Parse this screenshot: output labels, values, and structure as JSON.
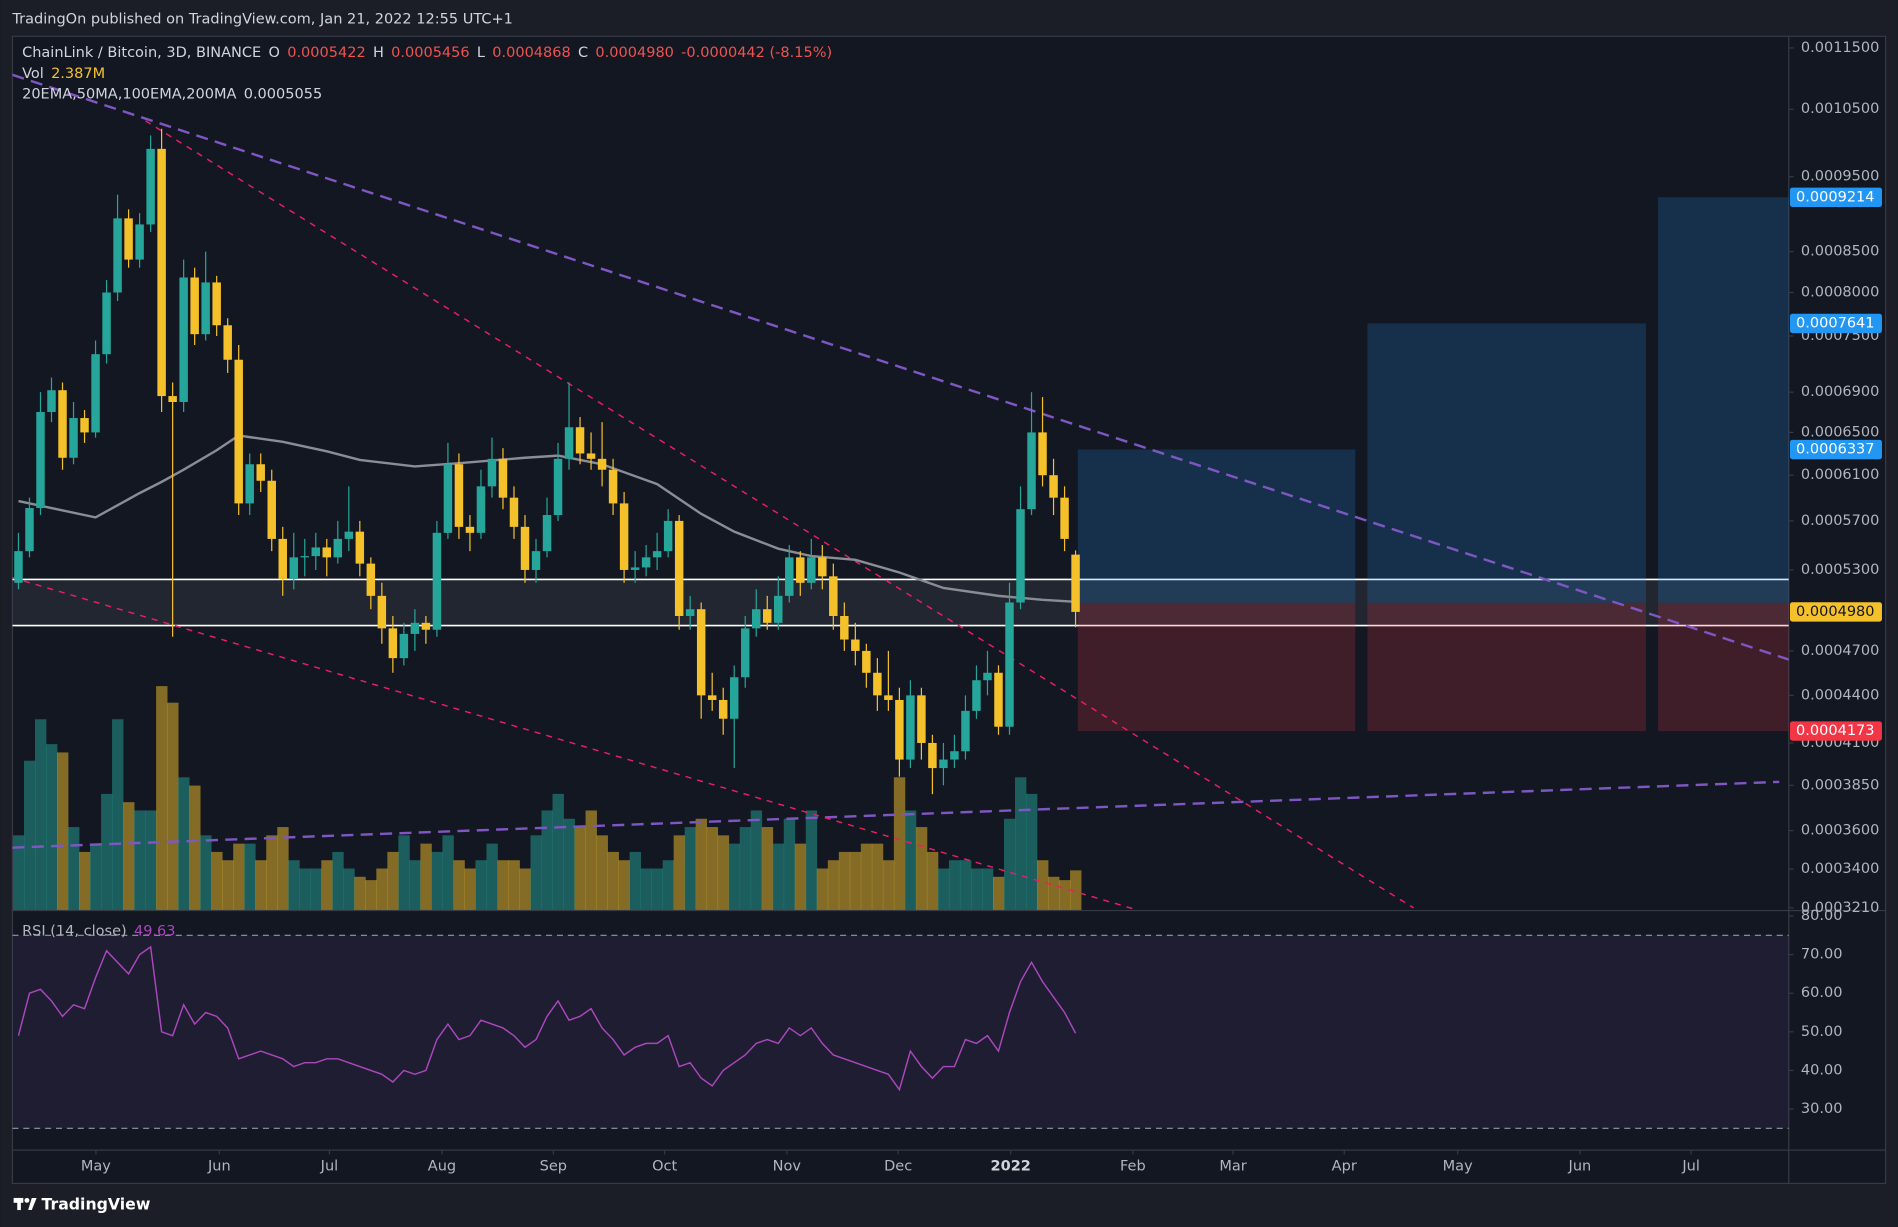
{
  "header": {
    "published": "TradingOn published on TradingView.com, Jan 21, 2022 12:55 UTC+1"
  },
  "footer": {
    "brand": "TradingView"
  },
  "chart_data": {
    "type": "candlestick",
    "symbol": "ChainLink / Bitcoin, 3D, BINANCE",
    "ohlc_legend": [
      {
        "key": "O",
        "value": "0.0005422"
      },
      {
        "key": "H",
        "value": "0.0005456"
      },
      {
        "key": "L",
        "value": "0.0004868"
      },
      {
        "key": "C",
        "value": "0.0004980"
      }
    ],
    "change": "-0.0000442 (-8.15%)",
    "volume_legend": {
      "key": "Vol",
      "value": "2.387M"
    },
    "ma_legend": {
      "key": "20EMA,50MA,100EMA,200MA"
    },
    "up_color": "#26a69a",
    "down_color": "#f5c12b",
    "candles": [
      [
        0.00052,
        0.00056,
        0.000515,
        0.000545
      ],
      [
        0.000545,
        0.00059,
        0.00054,
        0.000581
      ],
      [
        0.000581,
        0.00069,
        0.000575,
        0.00067
      ],
      [
        0.00067,
        0.000705,
        0.00066,
        0.000692
      ],
      [
        0.000692,
        0.0007,
        0.000615,
        0.000626
      ],
      [
        0.000626,
        0.00068,
        0.00062,
        0.000664
      ],
      [
        0.000664,
        0.000672,
        0.00064,
        0.00065
      ],
      [
        0.00065,
        0.000745,
        0.000645,
        0.00073
      ],
      [
        0.00073,
        0.000815,
        0.00072,
        0.0008
      ],
      [
        0.0008,
        0.000925,
        0.00079,
        0.000893
      ],
      [
        0.000893,
        0.000905,
        0.00083,
        0.00084
      ],
      [
        0.00084,
        0.0009,
        0.00083,
        0.000885
      ],
      [
        0.000885,
        0.00101,
        0.000875,
        0.00099
      ],
      [
        0.00099,
        0.00102,
        0.00067,
        0.000686
      ],
      [
        0.000686,
        0.0007,
        0.00048,
        0.00068
      ],
      [
        0.00068,
        0.00084,
        0.00067,
        0.000818
      ],
      [
        0.000818,
        0.00083,
        0.00074,
        0.000752
      ],
      [
        0.000752,
        0.00085,
        0.000745,
        0.000812
      ],
      [
        0.000812,
        0.00082,
        0.00075,
        0.000762
      ],
      [
        0.000762,
        0.00077,
        0.00071,
        0.000724
      ],
      [
        0.000724,
        0.00074,
        0.000575,
        0.000585
      ],
      [
        0.000585,
        0.00063,
        0.000575,
        0.00062
      ],
      [
        0.00062,
        0.00063,
        0.000595,
        0.000605
      ],
      [
        0.000605,
        0.000615,
        0.000545,
        0.000555
      ],
      [
        0.000555,
        0.000565,
        0.00051,
        0.000523
      ],
      [
        0.000523,
        0.00056,
        0.000515,
        0.00054
      ],
      [
        0.00054,
        0.000555,
        0.000525,
        0.000541
      ],
      [
        0.000541,
        0.00056,
        0.00053,
        0.000548
      ],
      [
        0.000548,
        0.000555,
        0.000525,
        0.00054
      ],
      [
        0.00054,
        0.00057,
        0.000535,
        0.000555
      ],
      [
        0.000555,
        0.0006,
        0.000545,
        0.000561
      ],
      [
        0.000561,
        0.00057,
        0.000525,
        0.000535
      ],
      [
        0.000535,
        0.00054,
        0.0005,
        0.00051
      ],
      [
        0.00051,
        0.00052,
        0.000475,
        0.000486
      ],
      [
        0.000486,
        0.000495,
        0.000455,
        0.000465
      ],
      [
        0.000465,
        0.00049,
        0.00046,
        0.000482
      ],
      [
        0.000482,
        0.0005,
        0.00047,
        0.00049
      ],
      [
        0.00049,
        0.000495,
        0.000475,
        0.000485
      ],
      [
        0.000485,
        0.00057,
        0.00048,
        0.00056
      ],
      [
        0.00056,
        0.00064,
        0.000555,
        0.00062
      ],
      [
        0.00062,
        0.00063,
        0.000555,
        0.000565
      ],
      [
        0.000565,
        0.000575,
        0.000545,
        0.00056
      ],
      [
        0.00056,
        0.000615,
        0.000555,
        0.0006
      ],
      [
        0.0006,
        0.000645,
        0.00059,
        0.000625
      ],
      [
        0.000625,
        0.000635,
        0.00058,
        0.00059
      ],
      [
        0.00059,
        0.0006,
        0.000555,
        0.000565
      ],
      [
        0.000565,
        0.000575,
        0.00052,
        0.00053
      ],
      [
        0.00053,
        0.000555,
        0.00052,
        0.000545
      ],
      [
        0.000545,
        0.00059,
        0.00054,
        0.000575
      ],
      [
        0.000575,
        0.00064,
        0.00057,
        0.000625
      ],
      [
        0.000625,
        0.0007,
        0.000615,
        0.000655
      ],
      [
        0.000655,
        0.000665,
        0.00062,
        0.00063
      ],
      [
        0.00063,
        0.00065,
        0.000615,
        0.000625
      ],
      [
        0.000625,
        0.00066,
        0.0006,
        0.000615
      ],
      [
        0.000615,
        0.000625,
        0.000575,
        0.000585
      ],
      [
        0.000585,
        0.000595,
        0.00052,
        0.00053
      ],
      [
        0.00053,
        0.000545,
        0.00052,
        0.000532
      ],
      [
        0.000532,
        0.00055,
        0.000525,
        0.00054
      ],
      [
        0.00054,
        0.00056,
        0.00053,
        0.000545
      ],
      [
        0.000545,
        0.00058,
        0.00054,
        0.00057
      ],
      [
        0.00057,
        0.000575,
        0.000485,
        0.000495
      ],
      [
        0.000495,
        0.00051,
        0.000485,
        0.0005
      ],
      [
        0.0005,
        0.000505,
        0.000425,
        0.00044
      ],
      [
        0.00044,
        0.000455,
        0.00043,
        0.000437
      ],
      [
        0.000437,
        0.000445,
        0.000415,
        0.000425
      ],
      [
        0.000425,
        0.00046,
        0.000395,
        0.000452
      ],
      [
        0.000452,
        0.000495,
        0.000445,
        0.000486
      ],
      [
        0.000486,
        0.000515,
        0.00048,
        0.0005
      ],
      [
        0.0005,
        0.00051,
        0.000485,
        0.00049
      ],
      [
        0.00049,
        0.000525,
        0.000485,
        0.00051
      ],
      [
        0.00051,
        0.00055,
        0.000505,
        0.00054
      ],
      [
        0.00054,
        0.000545,
        0.00051,
        0.00052
      ],
      [
        0.00052,
        0.000555,
        0.000515,
        0.00054
      ],
      [
        0.00054,
        0.00055,
        0.000515,
        0.000525
      ],
      [
        0.000525,
        0.000535,
        0.000485,
        0.000495
      ],
      [
        0.000495,
        0.000505,
        0.00047,
        0.000478
      ],
      [
        0.000478,
        0.00049,
        0.00046,
        0.00047
      ],
      [
        0.00047,
        0.000475,
        0.000445,
        0.000455
      ],
      [
        0.000455,
        0.000465,
        0.00043,
        0.00044
      ],
      [
        0.00044,
        0.00047,
        0.00043,
        0.000437
      ],
      [
        0.000437,
        0.000445,
        0.00039,
        0.0004
      ],
      [
        0.0004,
        0.00045,
        0.000395,
        0.00044
      ],
      [
        0.00044,
        0.000445,
        0.0004,
        0.00041
      ],
      [
        0.00041,
        0.000415,
        0.00038,
        0.000395
      ],
      [
        0.000395,
        0.00041,
        0.000385,
        0.0004
      ],
      [
        0.0004,
        0.000415,
        0.000395,
        0.000405
      ],
      [
        0.000405,
        0.00044,
        0.0004,
        0.00043
      ],
      [
        0.00043,
        0.00046,
        0.000425,
        0.00045
      ],
      [
        0.00045,
        0.00047,
        0.00044,
        0.000455
      ],
      [
        0.000455,
        0.00046,
        0.000415,
        0.00042
      ],
      [
        0.00042,
        0.00052,
        0.000415,
        0.000505
      ],
      [
        0.000505,
        0.0006,
        0.0005,
        0.00058
      ],
      [
        0.00058,
        0.00069,
        0.000575,
        0.00065
      ],
      [
        0.00065,
        0.000685,
        0.0006,
        0.00061
      ],
      [
        0.00061,
        0.000625,
        0.000575,
        0.00059
      ],
      [
        0.00059,
        0.0006,
        0.000545,
        0.000555
      ],
      [
        0.0005422,
        0.0005456,
        0.0004868,
        0.000498
      ]
    ],
    "volume": [
      4.5,
      9,
      11.5,
      10,
      9.5,
      5,
      3.5,
      4,
      7,
      11.5,
      6.5,
      6,
      6,
      13.5,
      12.5,
      8,
      7.5,
      4.5,
      3.5,
      3,
      4,
      4,
      3,
      4.5,
      5,
      3,
      2.5,
      2.5,
      3,
      3.5,
      2.5,
      2,
      1.8,
      2.5,
      3.5,
      4.5,
      3,
      4,
      3.5,
      4.5,
      3,
      2.5,
      3,
      4,
      3,
      3,
      2.5,
      4.5,
      6,
      7,
      5.5,
      5,
      6,
      4.5,
      3.5,
      3,
      3.5,
      2.5,
      2.5,
      3,
      4.5,
      5,
      5.5,
      5,
      4.5,
      4,
      5,
      6,
      5,
      4,
      5.5,
      4,
      6,
      2.5,
      3,
      3.5,
      3.5,
      4,
      4,
      3,
      8,
      6,
      5,
      3.5,
      2.5,
      3,
      3,
      2.5,
      2.5,
      2,
      5.5,
      8,
      7,
      3,
      2,
      1.8,
      2.387
    ],
    "ma": {
      "color": "#8a8d96",
      "x": [
        0,
        7,
        11,
        13,
        15,
        18,
        20,
        24,
        28,
        31,
        36,
        40,
        46,
        49,
        53,
        58,
        62,
        65,
        69,
        72,
        76,
        80,
        84,
        89,
        93,
        96
      ],
      "values": [
        0.000587,
        0.000573,
        0.000594,
        0.000604,
        0.000615,
        0.000633,
        0.000647,
        0.000641,
        0.000632,
        0.000624,
        0.000618,
        0.000621,
        0.000626,
        0.000628,
        0.00062,
        0.000602,
        0.000576,
        0.000561,
        0.000547,
        0.000541,
        0.000538,
        0.000528,
        0.000516,
        0.00051,
        0.000507,
        0.0005055
      ]
    },
    "log_scale": true,
    "xlim": [
      -0.55,
      160.77
    ],
    "xticks": [
      {
        "value": 7.03,
        "label": "May"
      },
      {
        "value": 18.24,
        "label": "Jun"
      },
      {
        "value": 28.24,
        "label": "Jul"
      },
      {
        "value": 38.46,
        "label": "Aug"
      },
      {
        "value": 48.57,
        "label": "Sep"
      },
      {
        "value": 58.68,
        "label": "Oct"
      },
      {
        "value": 69.78,
        "label": "Nov"
      },
      {
        "value": 79.89,
        "label": "Dec"
      },
      {
        "value": 90.11,
        "label": "2022"
      },
      {
        "value": 101.2,
        "label": "Feb"
      },
      {
        "value": 110.3,
        "label": "Mar"
      },
      {
        "value": 120.4,
        "label": "Apr"
      },
      {
        "value": 130.7,
        "label": "May"
      },
      {
        "value": 141.8,
        "label": "Jun"
      },
      {
        "value": 151.9,
        "label": "Jul"
      }
    ],
    "ylim": [
      0.00032,
      0.00117
    ],
    "yticks": [
      {
        "value": 0.00115,
        "label": "0.0011500"
      },
      {
        "value": 0.00105,
        "label": "0.0010500"
      },
      {
        "value": 0.00095,
        "label": "0.0009500"
      },
      {
        "value": 0.00085,
        "label": "0.0008500"
      },
      {
        "value": 0.0008,
        "label": "0.0008000"
      },
      {
        "value": 0.00075,
        "label": "0.0007500"
      },
      {
        "value": 0.00069,
        "label": "0.0006900"
      },
      {
        "value": 0.00065,
        "label": "0.0006500"
      },
      {
        "value": 0.00061,
        "label": "0.0006100"
      },
      {
        "value": 0.00057,
        "label": "0.0005700"
      },
      {
        "value": 0.00053,
        "label": "0.0005300"
      },
      {
        "value": 0.00047,
        "label": "0.0004700"
      },
      {
        "value": 0.00044,
        "label": "0.0004400"
      },
      {
        "value": 0.00041,
        "label": "0.0004100"
      },
      {
        "value": 0.000385,
        "label": "0.0003850"
      },
      {
        "value": 0.00036,
        "label": "0.0003600"
      },
      {
        "value": 0.00034,
        "label": "0.0003400"
      },
      {
        "value": 0.000321,
        "label": "0.0003210"
      }
    ],
    "zone": {
      "values": [
        0.000488,
        0.0005226
      ],
      "color": "#ffffff"
    },
    "trendlines": [
      {
        "color": "#7e57c2",
        "points": [
          [
            -0.55,
            0.001105
          ],
          [
            160.77,
            0.000464
          ]
        ]
      },
      {
        "color": "#7e57c2",
        "points": [
          [
            -0.55,
            0.000351
          ],
          [
            159.9,
            0.000387
          ]
        ]
      },
      {
        "color": "#e91e63",
        "points": [
          [
            11.54,
            0.001032
          ],
          [
            126.7,
            0.000321
          ]
        ]
      },
      {
        "color": "#e91e63",
        "points": [
          [
            -0.55,
            0.000524
          ],
          [
            101.6,
            0.00032
          ]
        ]
      }
    ],
    "positions": [
      {
        "x": [
          96.2,
          121.4
        ],
        "entry": 0.0005048,
        "stop": 0.0004173,
        "target": 0.0006337
      },
      {
        "x": [
          122.5,
          147.8
        ],
        "entry": 0.0005048,
        "stop": 0.0004173,
        "target": 0.0007641
      },
      {
        "x": [
          148.9,
          160.77
        ],
        "entry": 0.0005048,
        "stop": 0.0004173,
        "target": 0.0009214
      }
    ],
    "last_price": {
      "value": 0.000498,
      "label": "0.0004980"
    },
    "rsi": {
      "title": "RSI (14, close)",
      "color": "#ab47bc",
      "values": [
        49,
        60,
        61,
        58,
        54,
        57,
        56,
        64,
        71,
        68,
        65,
        70,
        72,
        50,
        49,
        57,
        52,
        55,
        54,
        51,
        43,
        44,
        45,
        44,
        43,
        41,
        42,
        42,
        43,
        43,
        42,
        41,
        40,
        39,
        37,
        40,
        39,
        40,
        48,
        52,
        48,
        49,
        53,
        52,
        51,
        49,
        46,
        48,
        54,
        58,
        53,
        54,
        56,
        51,
        48,
        44,
        46,
        47,
        47,
        49,
        41,
        42,
        38,
        36,
        40,
        42,
        44,
        47,
        48,
        47,
        51,
        49,
        51,
        47,
        44,
        43,
        42,
        41,
        40,
        39,
        35,
        45,
        41,
        38,
        41,
        41,
        48,
        47,
        49,
        45,
        55,
        63,
        68,
        63,
        59,
        55,
        49.63
      ],
      "ylim": [
        19.5,
        81.25
      ],
      "yticks": [
        {
          "value": 80,
          "label": "80.00"
        },
        {
          "value": 70,
          "label": "70.00"
        },
        {
          "value": 60,
          "label": "60.00"
        },
        {
          "value": 50,
          "label": "50.00"
        },
        {
          "value": 40,
          "label": "40.00"
        },
        {
          "value": 30,
          "label": "30.00"
        }
      ],
      "bands": [
        75,
        25
      ]
    }
  }
}
